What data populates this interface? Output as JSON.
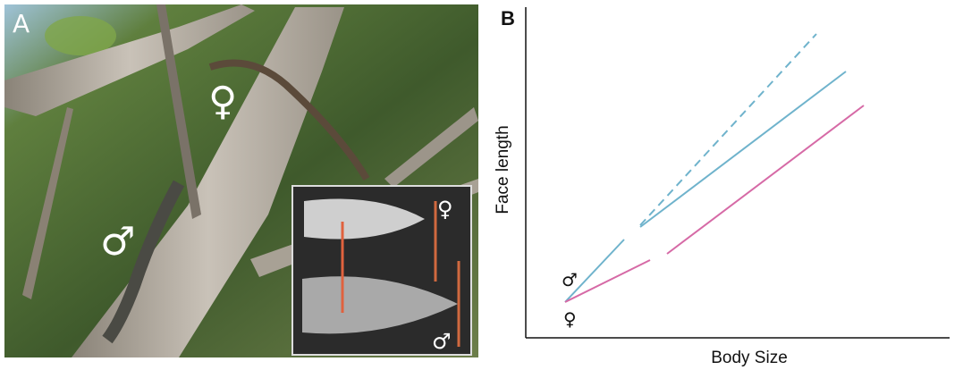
{
  "panel_a": {
    "label": "A",
    "female": "♀",
    "male": "♂",
    "inset": {
      "female": "♀",
      "male": "♂"
    }
  },
  "panel_b": {
    "label": "B",
    "y_axis_label": "Face length",
    "x_axis_label": "Body Size",
    "male": "♂",
    "female": "♀"
  }
}
